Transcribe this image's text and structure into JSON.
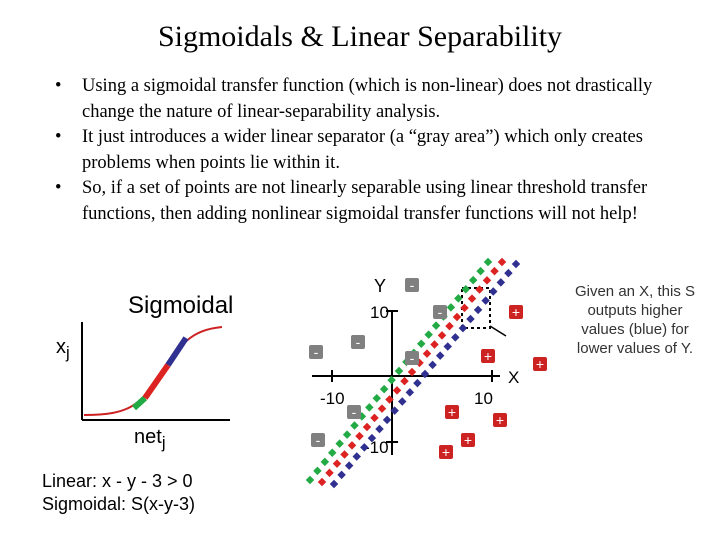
{
  "slide": {
    "title": "Sigmoidals & Linear Separability",
    "bullets": [
      "Using a sigmoidal transfer function (which is non-linear) does not drastically change the nature of linear-separability analysis.",
      "It just introduces a wider linear separator (a “gray area”) which only creates problems when points lie within it.",
      "So, if a set of points are not linearly separable using linear threshold transfer functions, then adding nonlinear sigmoidal transfer functions will not help!"
    ],
    "bullet_char": "•"
  },
  "sigmoid_panel": {
    "label": "Sigmoidal",
    "y_label": "x",
    "y_label_sub": "j",
    "x_label": "net",
    "x_label_sub": "j",
    "formula_line1": "Linear: x - y - 3 > 0",
    "formula_line2": "Sigmoidal: S(x-y-3)"
  },
  "scatter_panel": {
    "y_axis_label": "Y",
    "x_axis_label": "X",
    "tick_y_pos": "10",
    "tick_y_neg": "-10",
    "tick_x_pos": "10",
    "tick_x_neg": "-10",
    "minus_label": "-",
    "plus_label": "+",
    "note": "Given an X, this S outputs higher values (blue) for lower values of Y.",
    "colors": {
      "green": "#22aa44",
      "red": "#dd2222",
      "blue": "#303090",
      "minus_fill": "#808080",
      "plus_fill": "#cc2222"
    }
  }
}
